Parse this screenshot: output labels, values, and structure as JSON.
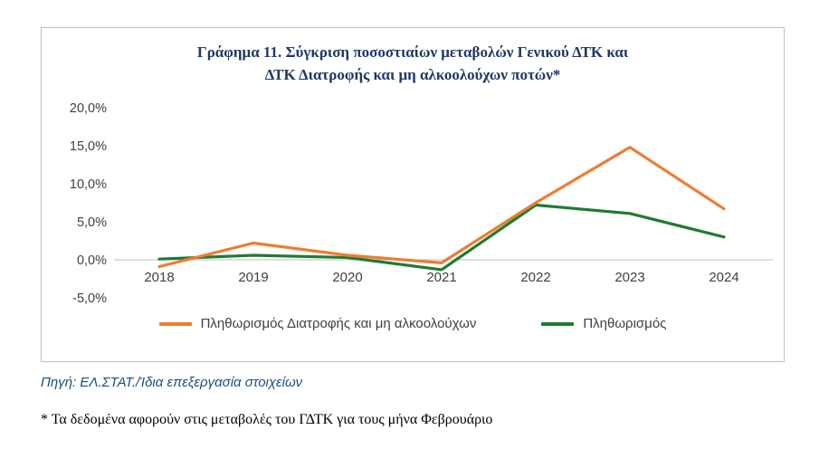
{
  "figure": {
    "title_line1": "Γράφημα 11. Σύγκριση ποσοστιαίων μεταβολών Γενικού ΔΤΚ και",
    "title_line2": "ΔΤΚ Διατροφής και μη αλκοολούχων ποτών*",
    "source": "Πηγή: ΕΛ.ΣΤΑΤ./Ίδια επεξεργασία στοιχείων",
    "footnote": "* Τα δεδομένα αφορούν στις μεταβολές του ΓΔΤΚ για τους μήνα Φεβρουάριο"
  },
  "chart_data": {
    "type": "line",
    "categories": [
      "2018",
      "2019",
      "2020",
      "2021",
      "2022",
      "2023",
      "2024"
    ],
    "series": [
      {
        "name": "Πληθωρισμός Διατροφής και μη αλκοολούχων",
        "color": "#ED7D31",
        "values": [
          -0.9,
          2.2,
          0.6,
          -0.4,
          7.5,
          14.8,
          6.7
        ]
      },
      {
        "name": "Πληθωρισμός",
        "color": "#1E7B34",
        "values": [
          0.1,
          0.6,
          0.3,
          -1.3,
          7.2,
          6.1,
          3.0
        ]
      }
    ],
    "ylim": [
      -5,
      20
    ],
    "yticks": [
      -5,
      0,
      5,
      10,
      15,
      20
    ],
    "ytick_labels": [
      "-5,0%",
      "0,0%",
      "5,0%",
      "10,0%",
      "15,0%",
      "20,0%"
    ],
    "grid": false,
    "legend_position": "bottom"
  },
  "colors": {
    "title": "#1F3864",
    "axis_text": "#404040",
    "axis_line": "#BFBFBF",
    "source_text": "#1F4E79"
  }
}
